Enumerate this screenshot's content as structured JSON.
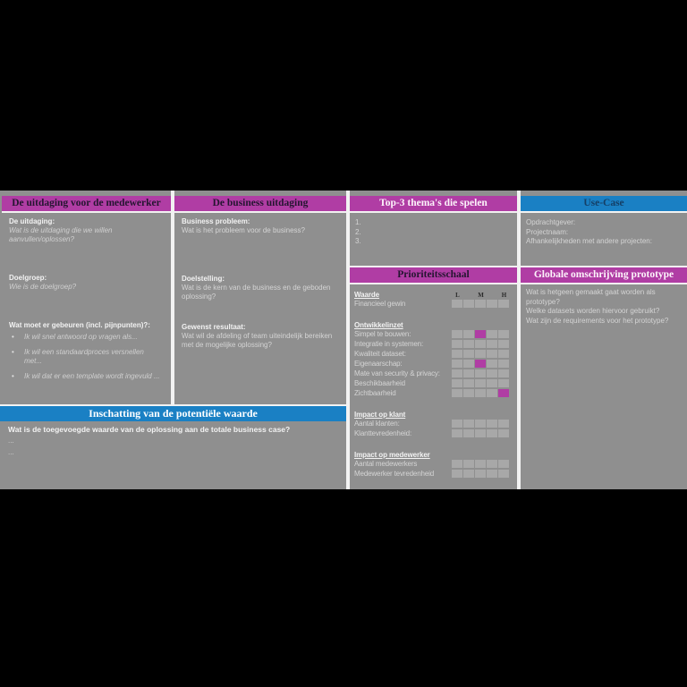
{
  "colors": {
    "canvas_bg": "#8f8f8f",
    "magenta": "#b03da4",
    "blue": "#1a80c4",
    "cell_bg": "#a8a8a8",
    "cell_filled": "#b03da4",
    "separator": "#f2f2f2"
  },
  "sections": {
    "medewerker": {
      "title": "De uitdaging voor de medewerker",
      "block1_label": "De uitdaging:",
      "block1_question": "Wat is de uitdaging die we willen aanvullen/oplossen?",
      "block2_label": "Doelgroep:",
      "block2_question": "Wie is de doelgroep?",
      "block3_label": "Wat moet er gebeuren (incl. pijnpunten)?:",
      "bullets": [
        "Ik wil snel antwoord op vragen als...",
        "Ik wil een standaardproces versnellen met...",
        "Ik wil dat er een template wordt ingevuld ..."
      ]
    },
    "business": {
      "title": "De business uitdaging",
      "block1_label": "Business probleem:",
      "block1_question": "Wat is het probleem voor de business?",
      "block2_label": "Doelstelling:",
      "block2_question": "Wat is de kern van de business en de geboden oplossing?",
      "block3_label": "Gewenst resultaat:",
      "block3_question": "Wat wil de afdeling of team uiteindelijk bereiken met de mogelijke oplossing?"
    },
    "top3": {
      "title": "Top-3 thema's die spelen",
      "items": [
        "1.",
        "2.",
        "3."
      ]
    },
    "usecase": {
      "title": "Use-Case",
      "lines": [
        "Opdrachtgever:",
        "Projectnaam:",
        "Afhankelijkheden met andere projecten:"
      ]
    },
    "priority": {
      "title": "Prioriteitsschaal",
      "scale": [
        "L",
        "M",
        "H"
      ],
      "cells_per_row": 5,
      "groups": [
        {
          "heading": "Waarde",
          "show_scale": true,
          "rows": [
            {
              "label": "Financieel gewin",
              "filled": null,
              "level": null
            }
          ]
        },
        {
          "heading": "Ontwikkelinzet",
          "show_scale": false,
          "rows": [
            {
              "label": "Simpel te bouwen:",
              "filled": 3,
              "level": "M"
            },
            {
              "label": "Integratie in systemen:",
              "filled": null,
              "level": null
            },
            {
              "label": "Kwaliteit dataset:",
              "filled": null,
              "level": null
            },
            {
              "label": "Eigenaarschap:",
              "filled": 3,
              "level": "M"
            },
            {
              "label": "Mate van security & privacy:",
              "filled": null,
              "level": null
            },
            {
              "label": "Beschikbaarheid",
              "filled": null,
              "level": null
            },
            {
              "label": "Zichtbaarheid",
              "filled": 5,
              "level": "H"
            }
          ]
        },
        {
          "heading": "Impact op klant",
          "show_scale": false,
          "rows": [
            {
              "label": "Aantal klanten:",
              "filled": null,
              "level": null
            },
            {
              "label": "Klanttevredenheid:",
              "filled": null,
              "level": null
            }
          ]
        },
        {
          "heading": "Impact op medewerker",
          "show_scale": false,
          "rows": [
            {
              "label": "Aantal medewerkers",
              "filled": null,
              "level": null
            },
            {
              "label": "Medewerker tevredenheid",
              "filled": null,
              "level": null
            }
          ]
        }
      ]
    },
    "prototype": {
      "title": "Globale omschrijving prototype",
      "lines": [
        "Wat is hetgeen gemaakt gaat worden als prototype?",
        "Welke datasets worden hiervoor gebruikt?",
        "Wat zijn de requirements voor het prototype?"
      ]
    },
    "waarde_inschatting": {
      "title": "Inschatting van de potentiële waarde",
      "question": "Wat is de toegevoegde waarde van de oplossing aan de totale business case?",
      "lines": [
        "...",
        "..."
      ]
    }
  }
}
